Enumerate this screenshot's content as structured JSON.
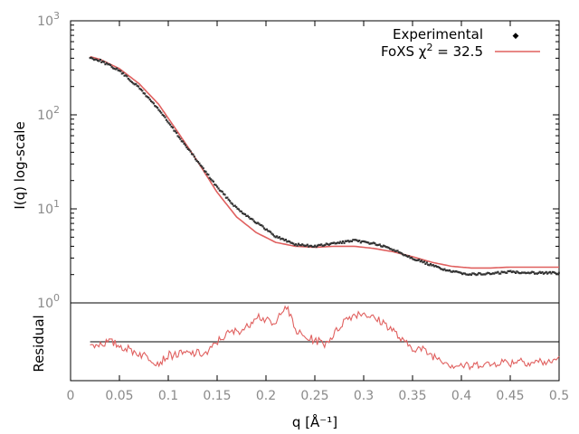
{
  "chart_data": [
    {
      "type": "scatter",
      "panel": "main",
      "xlabel": "q [Å⁻¹]",
      "ylabel": "I(q) log-scale",
      "xlim": [
        0,
        0.5
      ],
      "ylim": [
        1,
        1000
      ],
      "yscale": "log",
      "x_ticks": [
        "0",
        "0.05",
        "0.1",
        "0.15",
        "0.2",
        "0.25",
        "0.3",
        "0.35",
        "0.4",
        "0.45",
        "0.5"
      ],
      "y_ticks": [
        {
          "base": "10",
          "exp": "0",
          "value": 1
        },
        {
          "base": "10",
          "exp": "1",
          "value": 10
        },
        {
          "base": "10",
          "exp": "2",
          "value": 100
        },
        {
          "base": "10",
          "exp": "3",
          "value": 1000
        }
      ],
      "legend_position": "top-right",
      "series": [
        {
          "name": "Experimental",
          "color": "#333333",
          "marker": "points",
          "x": [
            0.02,
            0.03,
            0.05,
            0.07,
            0.09,
            0.11,
            0.13,
            0.15,
            0.17,
            0.19,
            0.21,
            0.23,
            0.25,
            0.27,
            0.29,
            0.31,
            0.33,
            0.35,
            0.37,
            0.39,
            0.41,
            0.43,
            0.45,
            0.47,
            0.49,
            0.5
          ],
          "y": [
            405,
            380,
            295,
            195,
            115,
            60,
            32,
            17,
            10.2,
            7.2,
            5.1,
            4.2,
            4.0,
            4.3,
            4.6,
            4.3,
            3.7,
            3.0,
            2.5,
            2.15,
            2.02,
            2.05,
            2.15,
            2.1,
            2.1,
            2.05
          ]
        },
        {
          "name": "FoXS χ² = 32.5",
          "legend_label": "FoXS χ",
          "legend_exp": "2",
          "legend_suffix": " = 32.5",
          "color": "#e0605f",
          "marker": "line",
          "x": [
            0.02,
            0.03,
            0.05,
            0.07,
            0.09,
            0.11,
            0.13,
            0.15,
            0.17,
            0.19,
            0.21,
            0.23,
            0.25,
            0.27,
            0.29,
            0.31,
            0.33,
            0.35,
            0.37,
            0.39,
            0.41,
            0.43,
            0.45,
            0.47,
            0.49,
            0.5
          ],
          "y": [
            415,
            390,
            310,
            215,
            130,
            65,
            32,
            15,
            8.2,
            5.6,
            4.4,
            4.0,
            3.9,
            4.0,
            4.0,
            3.8,
            3.5,
            3.1,
            2.7,
            2.45,
            2.35,
            2.35,
            2.4,
            2.4,
            2.4,
            2.4
          ]
        }
      ]
    },
    {
      "type": "line",
      "panel": "residual",
      "xlabel": "q [Å⁻¹]",
      "ylabel": "Residual",
      "xlim": [
        0,
        0.5
      ],
      "ylim": [
        -1,
        1
      ],
      "reference_line": 0,
      "series": [
        {
          "name": "Residual",
          "color": "#e0605f",
          "x": [
            0.02,
            0.04,
            0.06,
            0.08,
            0.09,
            0.1,
            0.12,
            0.14,
            0.15,
            0.16,
            0.18,
            0.19,
            0.2,
            0.21,
            0.215,
            0.22,
            0.225,
            0.23,
            0.24,
            0.25,
            0.26,
            0.27,
            0.28,
            0.29,
            0.3,
            0.31,
            0.32,
            0.33,
            0.34,
            0.35,
            0.36,
            0.37,
            0.38,
            0.39,
            0.4,
            0.41,
            0.42,
            0.43,
            0.44,
            0.45,
            0.46,
            0.47,
            0.48,
            0.49,
            0.5
          ],
          "y": [
            -0.1,
            0.0,
            -0.2,
            -0.4,
            -0.55,
            -0.35,
            -0.3,
            -0.3,
            0.0,
            0.2,
            0.35,
            0.7,
            0.55,
            0.4,
            0.8,
            0.95,
            0.65,
            0.3,
            0.1,
            0.05,
            -0.05,
            0.2,
            0.55,
            0.7,
            0.75,
            0.6,
            0.5,
            0.3,
            0.0,
            -0.15,
            -0.2,
            -0.35,
            -0.45,
            -0.6,
            -0.6,
            -0.65,
            -0.55,
            -0.6,
            -0.5,
            -0.55,
            -0.45,
            -0.55,
            -0.5,
            -0.55,
            -0.4
          ]
        }
      ]
    }
  ]
}
